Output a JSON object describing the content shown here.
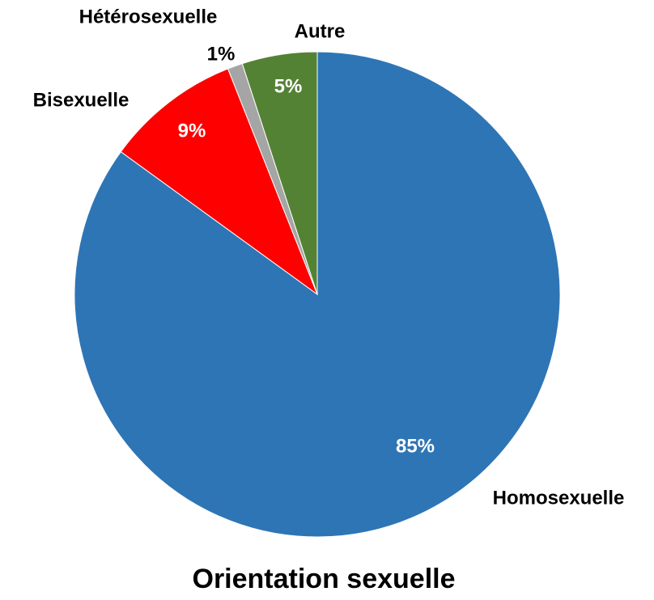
{
  "chart_data": {
    "type": "pie",
    "title": "Orientation sexuelle",
    "categories": [
      "Homosexuelle",
      "Bisexuelle",
      "Hétérosexuelle",
      "Autre"
    ],
    "values": [
      85,
      9,
      1,
      5
    ],
    "value_labels": [
      "85%",
      "9%",
      "1%",
      "5%"
    ],
    "colors": [
      "#2e75b6",
      "#ff0000",
      "#a5a5a5",
      "#548235"
    ]
  }
}
